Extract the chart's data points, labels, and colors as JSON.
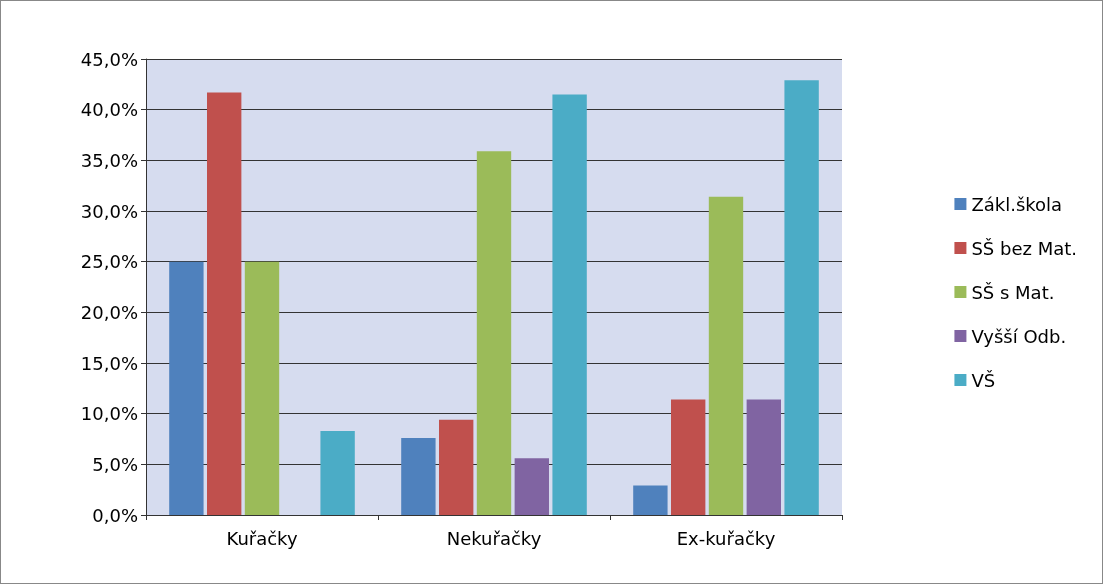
{
  "chart_data": {
    "type": "bar",
    "categories": [
      "Kuřačky",
      "Nekuřačky",
      "Ex-kuřačky"
    ],
    "series": [
      {
        "name": "Zákl.škola",
        "color": "#4f81bd",
        "values": [
          25.0,
          7.6,
          2.9
        ]
      },
      {
        "name": "SŠ bez Mat.",
        "color": "#c0504d",
        "values": [
          41.7,
          9.4,
          11.4
        ]
      },
      {
        "name": "SŠ s Mat.",
        "color": "#9bbb59",
        "values": [
          25.0,
          35.9,
          31.4
        ]
      },
      {
        "name": "Vyšší Odb.",
        "color": "#8064a2",
        "values": [
          0,
          5.6,
          11.4
        ]
      },
      {
        "name": "VŠ",
        "color": "#4bacc6",
        "values": [
          8.3,
          41.5,
          42.9
        ]
      }
    ],
    "ylim": [
      0,
      45
    ],
    "yticks": [
      {
        "value": 0,
        "label": "0,0%"
      },
      {
        "value": 5,
        "label": "5,0%"
      },
      {
        "value": 10,
        "label": "10,0%"
      },
      {
        "value": 15,
        "label": "15,0%"
      },
      {
        "value": 20,
        "label": "20,0%"
      },
      {
        "value": 25,
        "label": "25,0%"
      },
      {
        "value": 30,
        "label": "30,0%"
      },
      {
        "value": 35,
        "label": "35,0%"
      },
      {
        "value": 40,
        "label": "40,0%"
      },
      {
        "value": 45,
        "label": "45,0%"
      }
    ],
    "grid": "y",
    "legend": "right"
  }
}
